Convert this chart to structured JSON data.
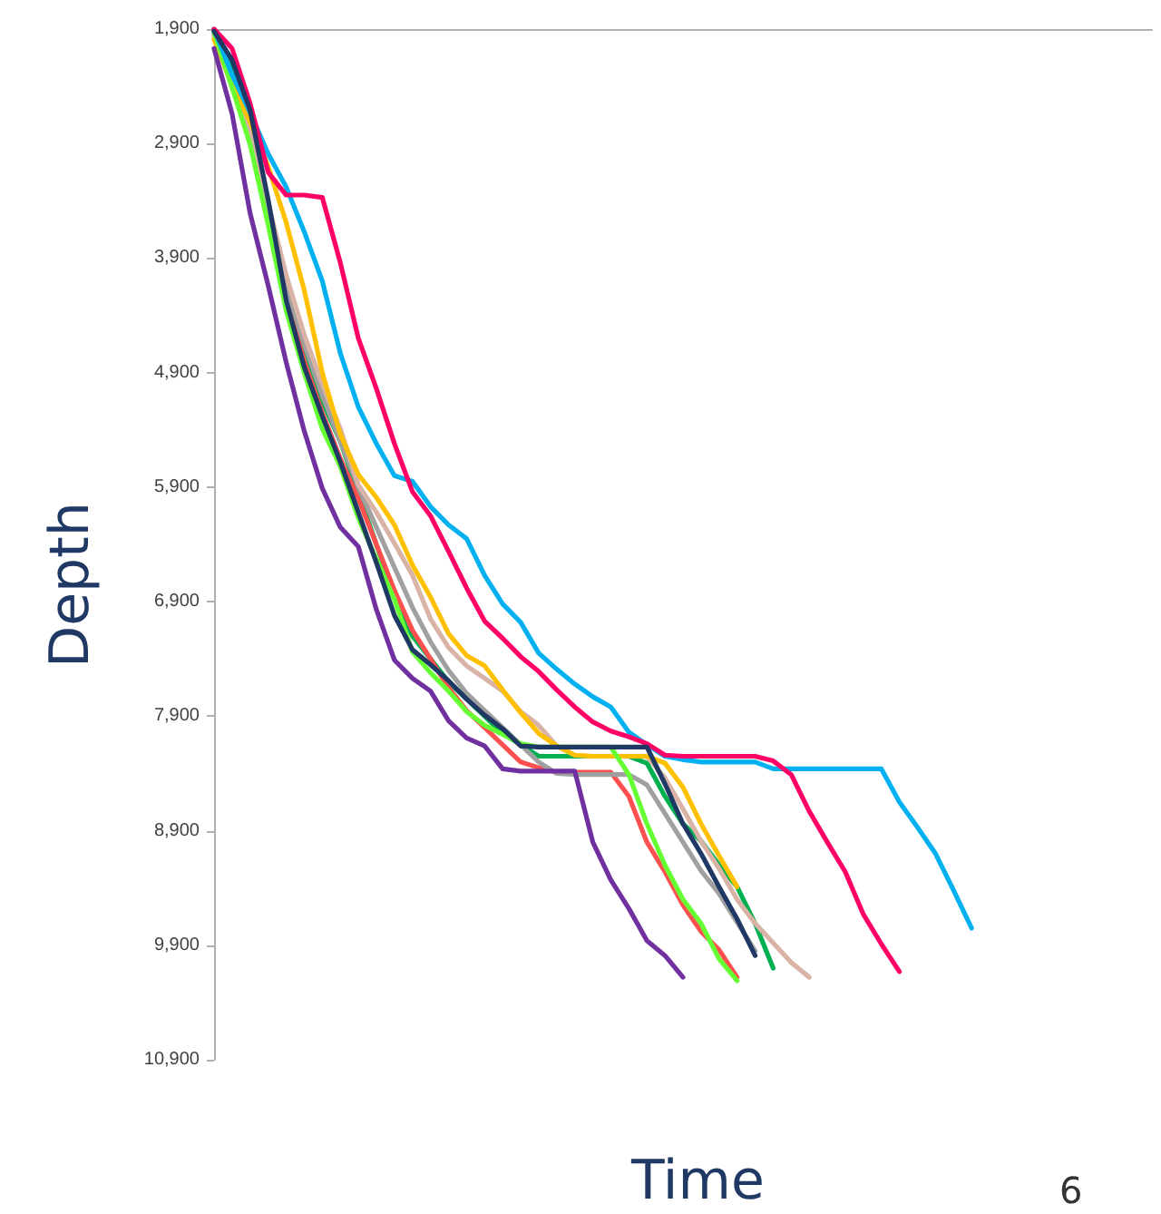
{
  "chart_data": {
    "type": "line",
    "xlabel": "Time",
    "ylabel": "Depth",
    "annotations": [
      "6"
    ],
    "categories": [
      null,
      null,
      null,
      null,
      null,
      null,
      null,
      null,
      null,
      null,
      null,
      null,
      null,
      null,
      null,
      null,
      null,
      null,
      null,
      null,
      null,
      null,
      null,
      null,
      null,
      null,
      null,
      null,
      null,
      null,
      null,
      null,
      null,
      null,
      null,
      null,
      null,
      null,
      null,
      null,
      null,
      null,
      null,
      null,
      null,
      null,
      null,
      null,
      null,
      null,
      null,
      null,
      null
    ],
    "ylim": [
      10900,
      1900
    ],
    "yticks": [
      {
        "value": 1900,
        "label": "1,900"
      },
      {
        "value": 2900,
        "label": "2,900"
      },
      {
        "value": 3900,
        "label": "3,900"
      },
      {
        "value": 4900,
        "label": "4,900"
      },
      {
        "value": 5900,
        "label": "5,900"
      },
      {
        "value": 6900,
        "label": "6,900"
      },
      {
        "value": 7900,
        "label": "7,900"
      },
      {
        "value": 8900,
        "label": "8,900"
      },
      {
        "value": 9900,
        "label": "9,900"
      },
      {
        "value": 10900,
        "label": "10,900"
      }
    ],
    "grid": false,
    "marker": "none",
    "line_style": "solid",
    "series": [
      {
        "color": "#00b050",
        "values": [
          1920,
          2250,
          2750,
          3450,
          4200,
          4750,
          5150,
          5500,
          5950,
          6400,
          6850,
          7200,
          7400,
          7600,
          7750,
          7900,
          8050,
          8150,
          8250,
          8250,
          8250,
          8250,
          8250,
          8250,
          8310,
          8600,
          8840,
          8990,
          9200,
          9390,
          9710,
          10100,
          null,
          null,
          null,
          null,
          null,
          null,
          null,
          null,
          null,
          null,
          null,
          null,
          null,
          null,
          null,
          null,
          null,
          null,
          null,
          null,
          null
        ]
      },
      {
        "color": "#ff5050",
        "values": [
          null,
          null,
          null,
          3550,
          4250,
          4800,
          5250,
          5650,
          6000,
          6400,
          6800,
          7150,
          7400,
          7650,
          7850,
          8000,
          8150,
          8300,
          8350,
          8390,
          8390,
          8390,
          8390,
          8600,
          9000,
          9260,
          9550,
          9780,
          9940,
          10180,
          null,
          null,
          null,
          null,
          null,
          null,
          null,
          null,
          null,
          null,
          null,
          null,
          null,
          null,
          null,
          null,
          null,
          null,
          null,
          null,
          null,
          null,
          null
        ]
      },
      {
        "color": "#a0a0a0",
        "values": [
          1950,
          2400,
          2850,
          3500,
          4150,
          4650,
          5100,
          5500,
          5900,
          6250,
          6600,
          6950,
          7250,
          7500,
          7700,
          7850,
          8000,
          8150,
          8300,
          8400,
          8410,
          8410,
          8410,
          8410,
          8500,
          8750,
          9000,
          9250,
          9450,
          9700,
          9950,
          null,
          null,
          null,
          null,
          null,
          null,
          null,
          null,
          null,
          null,
          null,
          null,
          null,
          null,
          null,
          null,
          null,
          null,
          null,
          null,
          null,
          null
        ]
      },
      {
        "color": "#d9b3a6",
        "values": [
          1960,
          2410,
          2780,
          3420,
          4050,
          4570,
          5000,
          5390,
          5880,
          6120,
          6390,
          6670,
          7050,
          7300,
          7460,
          7570,
          7680,
          7860,
          7980,
          8160,
          8240,
          8250,
          8250,
          8250,
          8250,
          8440,
          8710,
          8990,
          9230,
          9500,
          9710,
          9880,
          10050,
          10180,
          null,
          null,
          null,
          null,
          null,
          null,
          null,
          null,
          null,
          null,
          null,
          null,
          null,
          null,
          null,
          null,
          null,
          null,
          null
        ]
      },
      {
        "color": "#ffc000",
        "values": [
          1990,
          2390,
          2710,
          3100,
          3590,
          4180,
          4900,
          5440,
          5790,
          5990,
          6230,
          6580,
          6860,
          7180,
          7370,
          7460,
          7670,
          7870,
          8050,
          8160,
          8240,
          8250,
          8250,
          8250,
          8250,
          8310,
          8520,
          8840,
          9120,
          9390,
          null,
          null,
          null,
          null,
          null,
          null,
          null,
          null,
          null,
          null,
          null,
          null,
          null,
          null,
          null,
          null,
          null,
          null,
          null,
          null,
          null,
          null,
          null
        ]
      },
      {
        "color": "#66ff33",
        "values": [
          1930,
          2410,
          2910,
          3610,
          4360,
          4900,
          5390,
          5720,
          6170,
          6530,
          6880,
          7340,
          7520,
          7680,
          7860,
          7980,
          8060,
          8140,
          8170,
          8170,
          8170,
          8170,
          8170,
          8410,
          8840,
          9200,
          9500,
          9710,
          10020,
          10210,
          null,
          null,
          null,
          null,
          null,
          null,
          null,
          null,
          null,
          null,
          null,
          null,
          null,
          null,
          null,
          null,
          null,
          null,
          null,
          null,
          null,
          null,
          null
        ]
      },
      {
        "color": "#00b0f0",
        "values": [
          1900,
          2300,
          2630,
          2990,
          3280,
          3670,
          4100,
          4730,
          5200,
          5520,
          5800,
          5850,
          6070,
          6230,
          6350,
          6670,
          6920,
          7080,
          7350,
          7490,
          7620,
          7730,
          7820,
          8040,
          8150,
          8250,
          8280,
          8300,
          8300,
          8300,
          8300,
          8360,
          8360,
          8360,
          8360,
          8360,
          8360,
          8360,
          8650,
          8870,
          9100,
          9420,
          9750,
          null,
          null,
          null,
          null,
          null,
          null,
          null,
          null,
          null,
          null
        ]
      },
      {
        "color": "#ff0066",
        "values": [
          1900,
          2070,
          2550,
          3150,
          3350,
          3350,
          3370,
          3940,
          4600,
          5040,
          5520,
          5940,
          6150,
          6460,
          6780,
          7070,
          7220,
          7380,
          7510,
          7670,
          7820,
          7950,
          8030,
          8080,
          8140,
          8240,
          8250,
          8250,
          8250,
          8250,
          8250,
          8290,
          8410,
          8730,
          9000,
          9260,
          9630,
          9890,
          10130,
          null,
          null,
          null,
          null,
          null,
          null,
          null,
          null,
          null,
          null,
          null,
          null,
          null,
          null
        ]
      },
      {
        "color": "#1f3864",
        "values": [
          1920,
          2170,
          2610,
          3390,
          4270,
          4850,
          5280,
          5680,
          6120,
          6560,
          7020,
          7320,
          7450,
          7590,
          7750,
          7890,
          8010,
          8160,
          8170,
          8170,
          8170,
          8170,
          8170,
          8170,
          8170,
          8490,
          8840,
          9100,
          9390,
          9670,
          9990,
          null,
          null,
          null,
          null,
          null,
          null,
          null,
          null,
          null,
          null,
          null,
          null,
          null,
          null,
          null,
          null,
          null,
          null,
          null,
          null,
          null,
          null
        ]
      },
      {
        "color": "#7030a0",
        "values": [
          2070,
          2640,
          3510,
          4140,
          4810,
          5410,
          5910,
          6250,
          6420,
          6970,
          7410,
          7570,
          7680,
          7940,
          8090,
          8160,
          8360,
          8380,
          8380,
          8380,
          8380,
          9000,
          9330,
          9580,
          9860,
          9990,
          10180,
          null,
          null,
          null,
          null,
          null,
          null,
          null,
          null,
          null,
          null,
          null,
          null,
          null,
          null,
          null,
          null,
          null,
          null,
          null,
          null,
          null,
          null,
          null,
          null,
          null,
          null
        ]
      }
    ]
  }
}
